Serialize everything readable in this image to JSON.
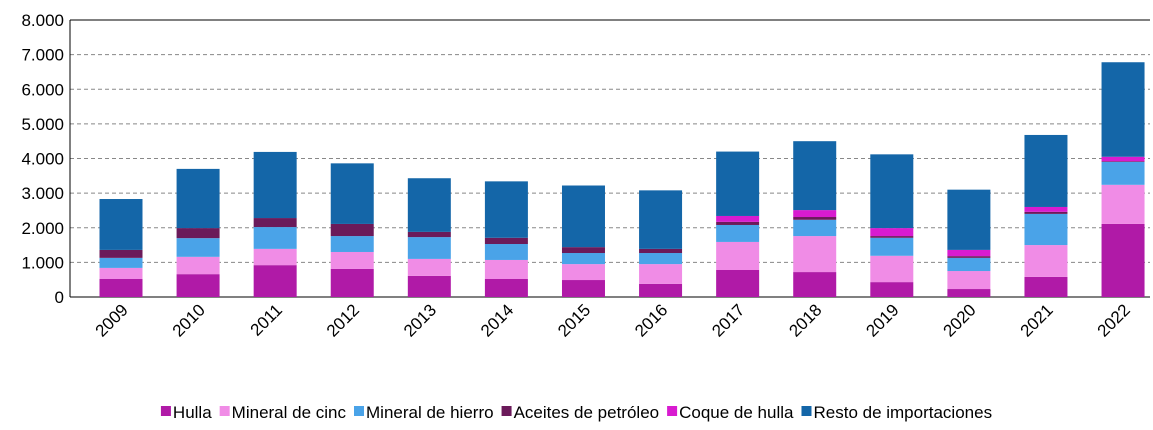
{
  "chart_data": {
    "type": "stacked_bar",
    "categories": [
      "2009",
      "2010",
      "2011",
      "2012",
      "2013",
      "2014",
      "2015",
      "2016",
      "2017",
      "2018",
      "2019",
      "2020",
      "2021",
      "2022"
    ],
    "series": [
      {
        "name": "Hulla",
        "color": "#b01aa7",
        "values": [
          520,
          660,
          920,
          810,
          610,
          520,
          490,
          380,
          780,
          720,
          430,
          230,
          580,
          2110
        ]
      },
      {
        "name": "Mineral de cinc",
        "color": "#f08ce6",
        "values": [
          320,
          500,
          470,
          490,
          490,
          550,
          460,
          570,
          810,
          1040,
          760,
          520,
          920,
          1130
        ]
      },
      {
        "name": "Mineral de hierro",
        "color": "#4aa3e8",
        "values": [
          290,
          540,
          630,
          460,
          630,
          460,
          320,
          320,
          490,
          470,
          520,
          380,
          900,
          660
        ]
      },
      {
        "name": "Aceites de petróleo",
        "color": "#6b1a5a",
        "values": [
          230,
          290,
          260,
          350,
          150,
          180,
          170,
          120,
          90,
          80,
          50,
          50,
          60,
          20
        ]
      },
      {
        "name": "Coque de hulla",
        "color": "#d81bd0",
        "values": [
          0,
          0,
          0,
          0,
          0,
          0,
          0,
          0,
          170,
          200,
          230,
          180,
          140,
          130
        ]
      },
      {
        "name": "Resto de importaciones",
        "color": "#1466a8",
        "values": [
          1470,
          1710,
          1910,
          1750,
          1550,
          1630,
          1780,
          1690,
          1860,
          1990,
          2130,
          1740,
          2080,
          2730
        ]
      }
    ],
    "ylim": [
      0,
      8000
    ],
    "yticks": [
      0,
      {
        "value": 1000,
        "label": "1.000"
      },
      {
        "value": 2000,
        "label": "2.000"
      },
      {
        "value": 3000,
        "label": "3.000"
      },
      {
        "value": 4000,
        "label": "4.000"
      },
      {
        "value": 5000,
        "label": "5.000"
      },
      {
        "value": 6000,
        "label": "6.000"
      },
      {
        "value": 7000,
        "label": "7.000"
      },
      {
        "value": 8000,
        "label": "8.000"
      }
    ],
    "grid": true,
    "legend": "bottom"
  }
}
